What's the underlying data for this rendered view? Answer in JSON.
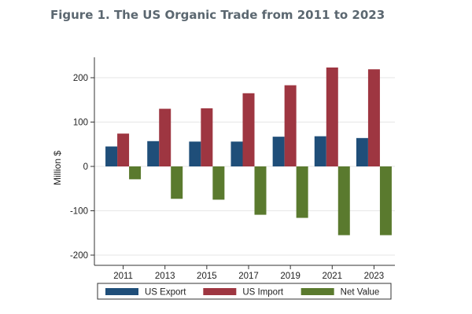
{
  "title": "Figure 1. The US Organic Trade from 2011 to 2023",
  "chart_data": {
    "type": "bar",
    "categories": [
      "2011",
      "2013",
      "2015",
      "2017",
      "2019",
      "2021",
      "2023"
    ],
    "series": [
      {
        "name": "US Export",
        "color": "#1f4e79",
        "values": [
          45,
          57,
          56,
          56,
          67,
          68,
          64
        ]
      },
      {
        "name": "US Import",
        "color": "#9e3641",
        "values": [
          74,
          130,
          131,
          165,
          183,
          223,
          219
        ]
      },
      {
        "name": "Net Value",
        "color": "#5a7a2e",
        "values": [
          -29,
          -73,
          -75,
          -109,
          -116,
          -155,
          -155
        ]
      }
    ],
    "ylabel": "Million $",
    "xlabel": "",
    "ylim": [
      -200,
      200
    ],
    "yticks": [
      -200,
      -100,
      0,
      100,
      200
    ],
    "grid": true,
    "legend": "bottom"
  }
}
